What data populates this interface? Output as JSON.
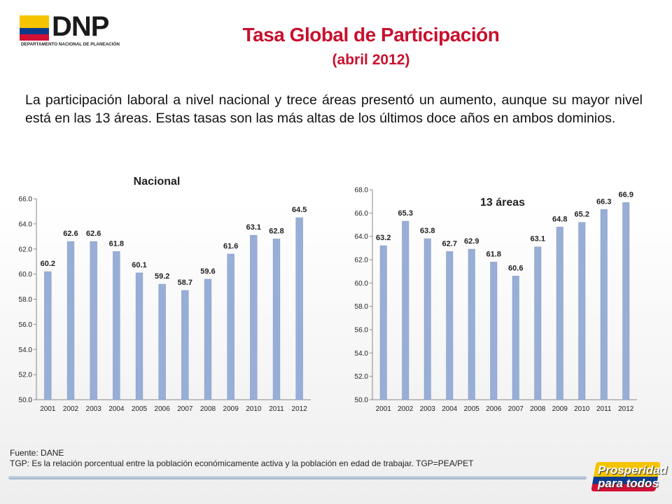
{
  "logo": {
    "name": "DNP",
    "subtitle": "DEPARTAMENTO NACIONAL DE PLANEACIÓN"
  },
  "header": {
    "title": "Tasa Global de Participación",
    "subtitle": "(abril 2012)"
  },
  "intro": "La participación laboral a nivel nacional y trece áreas presentó un aumento, aunque su mayor nivel está en las 13 áreas. Estas tasas son las más altas de los últimos doce años en ambos dominios.",
  "chart_data": [
    {
      "type": "bar",
      "title": "Nacional",
      "categories": [
        "2001",
        "2002",
        "2003",
        "2004",
        "2005",
        "2006",
        "2007",
        "2008",
        "2009",
        "2010",
        "2011",
        "2012"
      ],
      "values": [
        60.2,
        62.6,
        62.6,
        61.8,
        60.1,
        59.2,
        58.7,
        59.6,
        61.6,
        63.1,
        62.8,
        64.5
      ],
      "value_labels": [
        "60.2",
        "62.6",
        "62.6",
        "61.8",
        "60.1",
        "59.2",
        "58.7",
        "59.6",
        "61.6",
        "63.1",
        "62.8",
        "64.5"
      ],
      "yticks": [
        "50.0",
        "52.0",
        "54.0",
        "56.0",
        "58.0",
        "60.0",
        "62.0",
        "64.0",
        "66.0"
      ],
      "ylim": [
        50,
        66
      ],
      "grid": false,
      "color": "#98aed6"
    },
    {
      "type": "bar",
      "title": "13 áreas",
      "categories": [
        "2001",
        "2002",
        "2003",
        "2004",
        "2005",
        "2006",
        "2007",
        "2008",
        "2009",
        "2010",
        "2011",
        "2012"
      ],
      "values": [
        63.2,
        65.3,
        63.8,
        62.7,
        62.9,
        61.8,
        60.6,
        63.1,
        64.8,
        65.2,
        66.3,
        66.9
      ],
      "value_labels": [
        "63.2",
        "65.3",
        "63.8",
        "62.7",
        "62.9",
        "61.8",
        "60.6",
        "63.1",
        "64.8",
        "65.2",
        "66.3",
        "66.9"
      ],
      "yticks": [
        "50.0",
        "52.0",
        "54.0",
        "56.0",
        "58.0",
        "60.0",
        "62.0",
        "64.0",
        "66.0",
        "68.0"
      ],
      "ylim": [
        50,
        68
      ],
      "grid": false,
      "color": "#98aed6"
    }
  ],
  "footer": {
    "source": "Fuente: DANE",
    "note": "TGP:  Es la relación porcentual entre la población económicamente activa y la población  en edad de trabajar. TGP=PEA/PET"
  },
  "badge": {
    "line1": "Prosperidad",
    "line2": "para todos"
  },
  "colors": {
    "title": "#c8102e",
    "bar": "#98aed6",
    "flag_yellow": "#f5c400",
    "flag_blue": "#0d3b8c",
    "flag_red": "#d21034"
  }
}
